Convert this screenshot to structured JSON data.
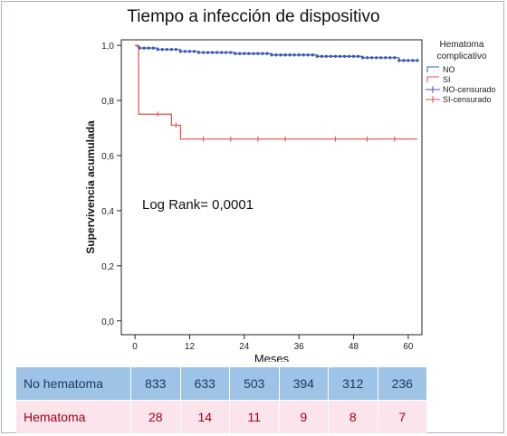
{
  "chart_data": {
    "type": "line",
    "title": "Tiempo a infección de dispositivo",
    "xlabel": "Meses",
    "ylabel": "Supervivencia acumulada",
    "xlim": [
      -3,
      63
    ],
    "ylim": [
      -0.05,
      1.02
    ],
    "xticks": [
      0,
      12,
      24,
      36,
      48,
      60
    ],
    "yticks": [
      0.0,
      0.2,
      0.4,
      0.6,
      0.8,
      1.0
    ],
    "ytick_labels": [
      "0,0",
      "0,2",
      "0,4",
      "0,6",
      "0,8",
      "1,0"
    ],
    "grid": false,
    "legend_title": "Hematoma complicativo",
    "legend_position": "top-right",
    "annotation": "Log Rank= 0,0001",
    "series": [
      {
        "name": "NO",
        "color": "#3b5bb5",
        "steps": [
          [
            0,
            1.0
          ],
          [
            0.5,
            0.995
          ],
          [
            1,
            0.99
          ],
          [
            5,
            0.985
          ],
          [
            10,
            0.978
          ],
          [
            14,
            0.974
          ],
          [
            22,
            0.97
          ],
          [
            30,
            0.965
          ],
          [
            40,
            0.96
          ],
          [
            50,
            0.955
          ],
          [
            58,
            0.945
          ],
          [
            62,
            0.945
          ]
        ],
        "censored_every": 1,
        "censored_from": 1,
        "censored_to": 62
      },
      {
        "name": "SI",
        "color": "#e0504c",
        "steps": [
          [
            0,
            1.0
          ],
          [
            0.8,
            0.75
          ],
          [
            8,
            0.71
          ],
          [
            10,
            0.66
          ],
          [
            62,
            0.66
          ]
        ],
        "censored": [
          [
            5,
            0.75
          ],
          [
            9,
            0.71
          ],
          [
            15,
            0.66
          ],
          [
            21,
            0.66
          ],
          [
            27,
            0.66
          ],
          [
            33,
            0.66
          ],
          [
            44,
            0.66
          ],
          [
            51,
            0.66
          ],
          [
            57,
            0.66
          ]
        ]
      }
    ],
    "legend": [
      {
        "label": "NO",
        "color": "#3b5bb5",
        "kind": "line"
      },
      {
        "label": "SI",
        "color": "#e0504c",
        "kind": "line"
      },
      {
        "label": "NO-censurado",
        "color": "#3b5bb5",
        "kind": "censor"
      },
      {
        "label": "SI-censurado",
        "color": "#e0504c",
        "kind": "censor"
      }
    ]
  },
  "risk_table": {
    "rows": [
      {
        "label": "No hematoma",
        "values": [
          "833",
          "633",
          "503",
          "394",
          "312",
          "236"
        ]
      },
      {
        "label": "Hematoma",
        "values": [
          "28",
          "14",
          "11",
          "9",
          "8",
          "7"
        ]
      }
    ]
  }
}
